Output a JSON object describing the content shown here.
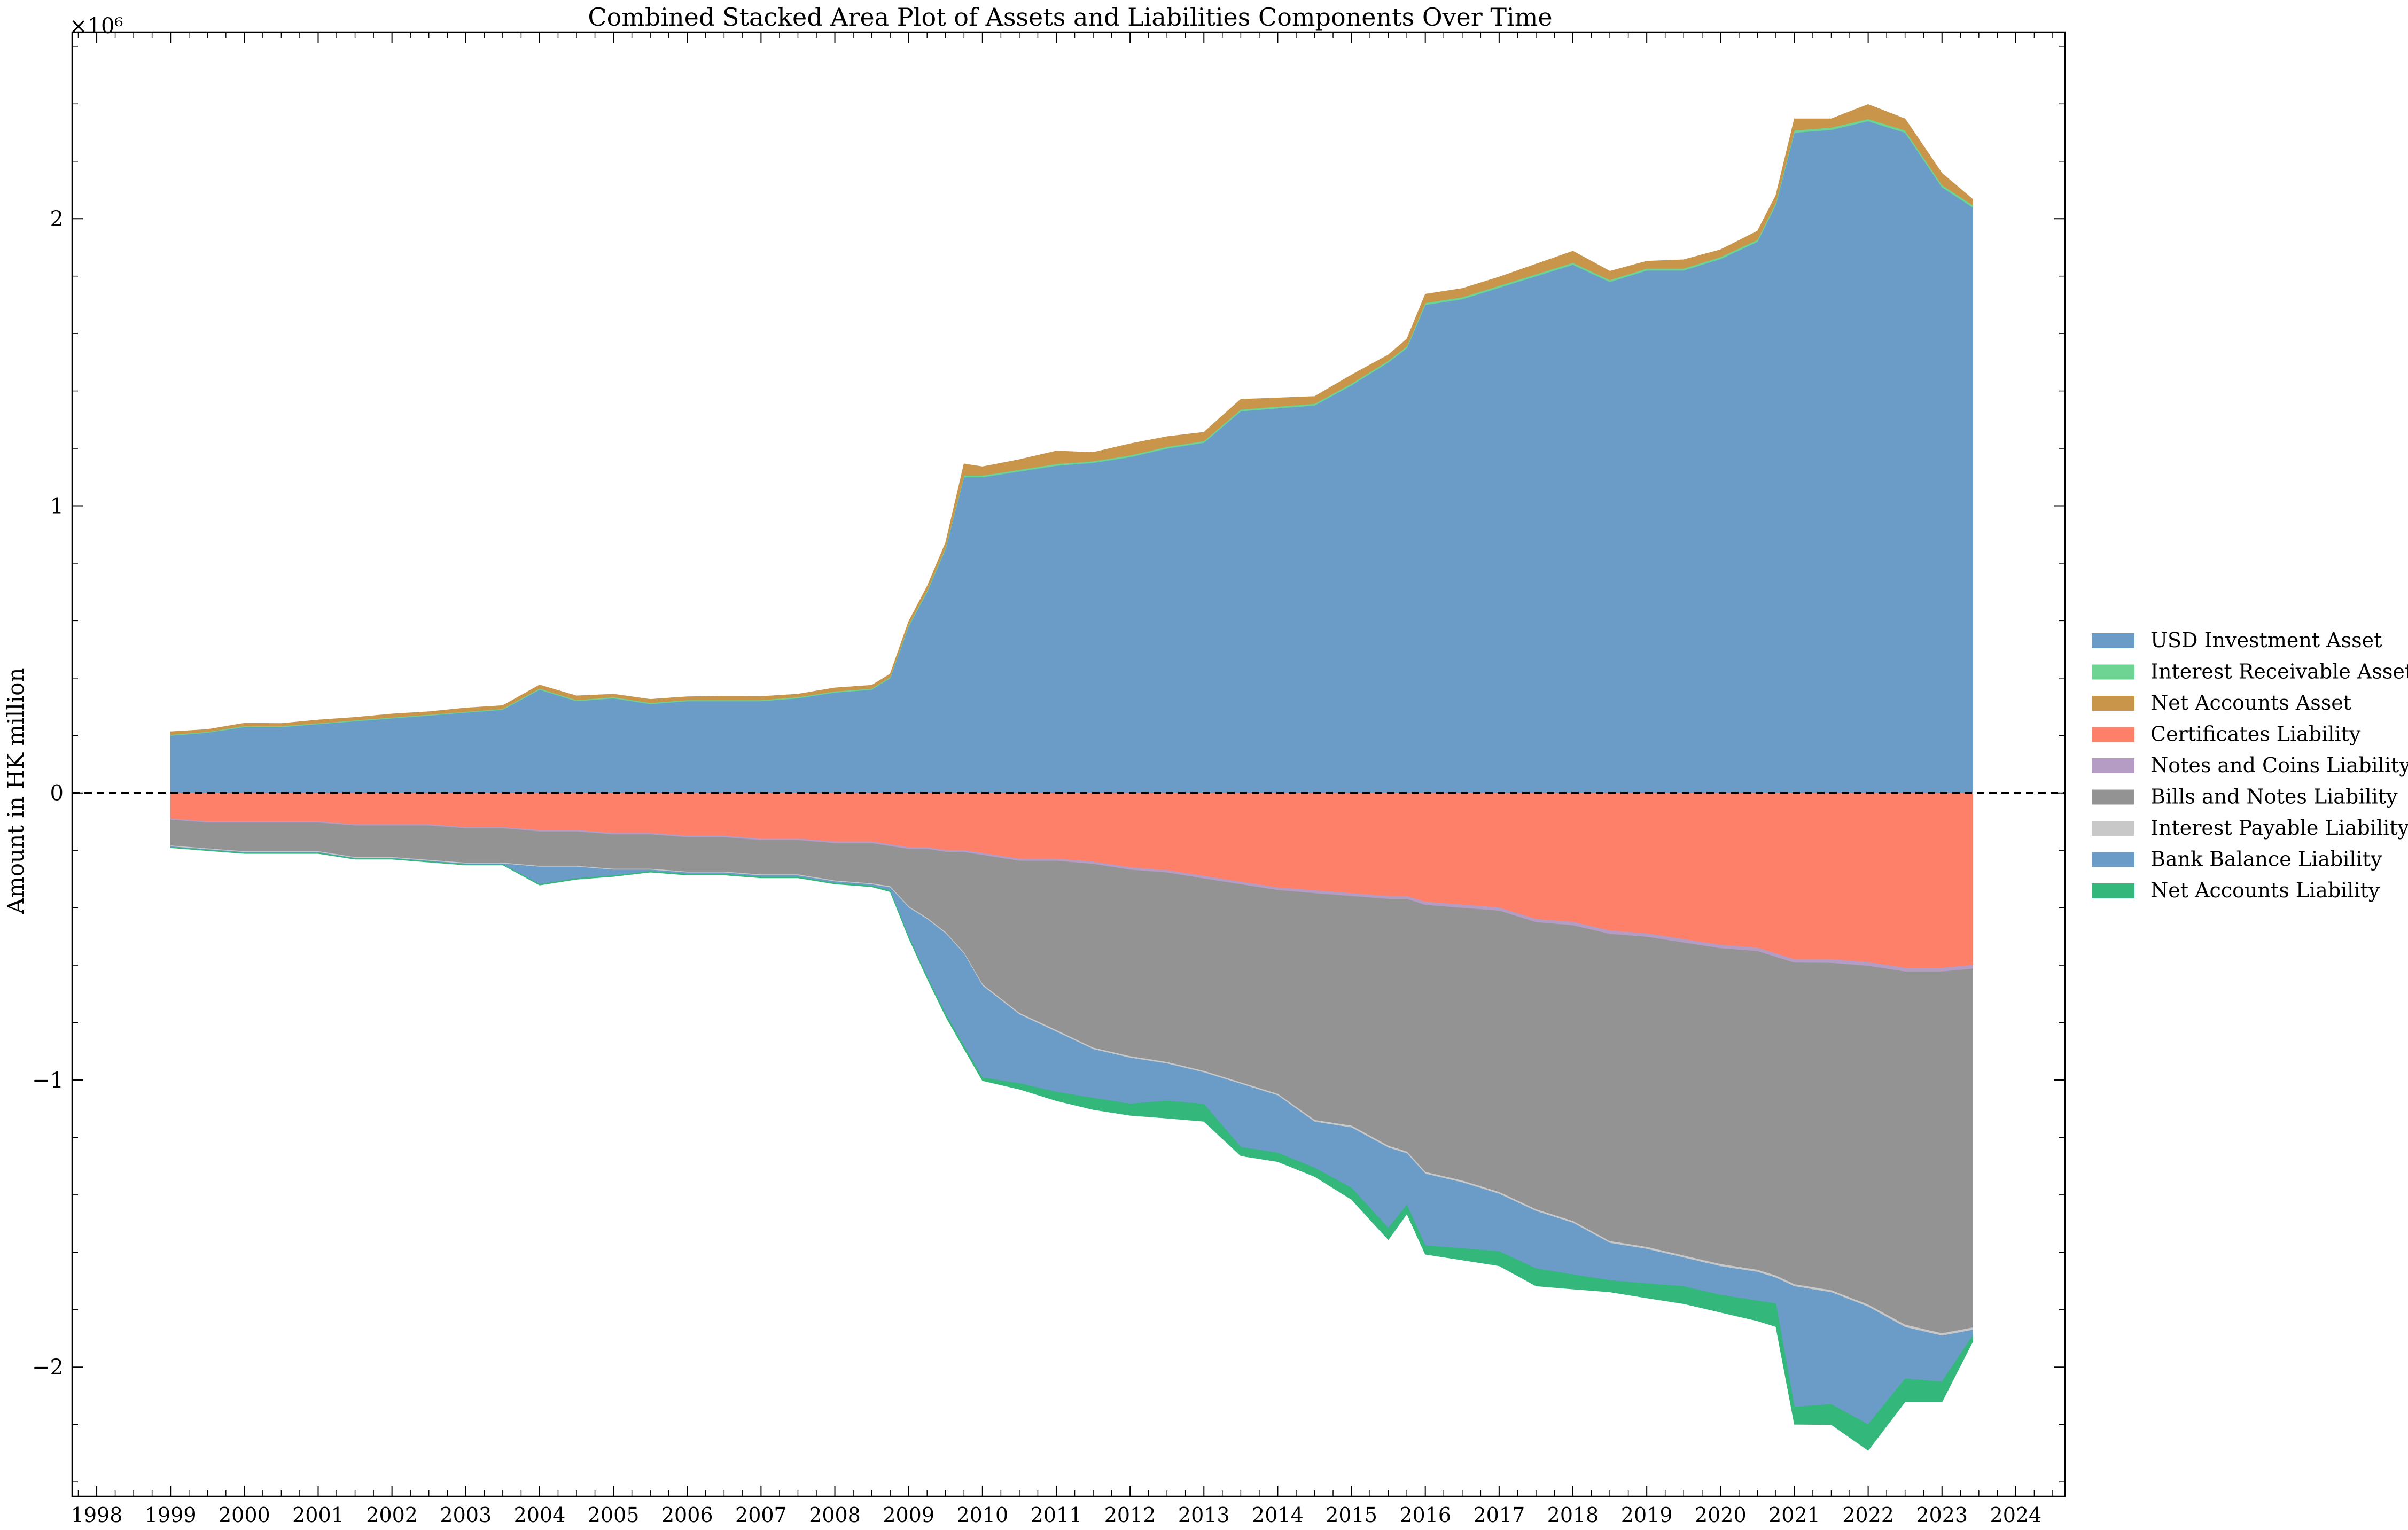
{
  "chart_data": {
    "type": "area",
    "stacked": true,
    "title": "Combined Stacked Area Plot of Assets and Liabilities Components Over Time",
    "xlabel": "",
    "ylabel": "Amount in HK million",
    "y_multiplier_label": "×10⁶",
    "xlim": [
      "1997-09-01",
      "2024-09-01"
    ],
    "ylim": [
      -2.45,
      2.65
    ],
    "y_unit": "HK$ million ×10^6",
    "x_ticks": [
      "1998",
      "1999",
      "2000",
      "2001",
      "2002",
      "2003",
      "2004",
      "2005",
      "2006",
      "2007",
      "2008",
      "2009",
      "2010",
      "2011",
      "2012",
      "2013",
      "2014",
      "2015",
      "2016",
      "2017",
      "2018",
      "2019",
      "2020",
      "2021",
      "2022",
      "2023",
      "2024"
    ],
    "y_ticks": [
      -2,
      -1,
      0,
      1,
      2
    ],
    "y_tick_labels": [
      "−2",
      "−1",
      "0",
      "1",
      "2"
    ],
    "zero_line": {
      "style": "dashed",
      "color": "#000000"
    },
    "grid": false,
    "legend": {
      "placement": "right, outside plot"
    },
    "dates": [
      "1999-01",
      "1999-07",
      "2000-01",
      "2000-07",
      "2001-01",
      "2001-07",
      "2002-01",
      "2002-07",
      "2003-01",
      "2003-07",
      "2004-01",
      "2004-07",
      "2005-01",
      "2005-07",
      "2006-01",
      "2006-07",
      "2007-01",
      "2007-07",
      "2008-01",
      "2008-07",
      "2008-10",
      "2009-01",
      "2009-04",
      "2009-07",
      "2009-10",
      "2010-01",
      "2010-07",
      "2011-01",
      "2011-07",
      "2012-01",
      "2012-07",
      "2013-01",
      "2013-07",
      "2014-01",
      "2014-07",
      "2015-01",
      "2015-07",
      "2015-10",
      "2016-01",
      "2016-07",
      "2017-01",
      "2017-07",
      "2018-01",
      "2018-07",
      "2019-01",
      "2019-07",
      "2020-01",
      "2020-07",
      "2020-10",
      "2021-01",
      "2021-07",
      "2022-01",
      "2022-07",
      "2023-01",
      "2023-06"
    ],
    "series": [
      {
        "name": "USD Investment Asset",
        "group": "asset",
        "color": "#6b9cc8",
        "values": [
          0.2,
          0.21,
          0.23,
          0.23,
          0.24,
          0.25,
          0.26,
          0.27,
          0.28,
          0.29,
          0.36,
          0.32,
          0.33,
          0.31,
          0.32,
          0.32,
          0.32,
          0.33,
          0.35,
          0.36,
          0.4,
          0.58,
          0.7,
          0.85,
          1.1,
          1.1,
          1.12,
          1.14,
          1.15,
          1.17,
          1.2,
          1.22,
          1.33,
          1.34,
          1.35,
          1.42,
          1.5,
          1.55,
          1.7,
          1.72,
          1.76,
          1.8,
          1.84,
          1.78,
          1.82,
          1.82,
          1.86,
          1.92,
          2.05,
          2.3,
          2.31,
          2.34,
          2.3,
          2.11,
          2.04
        ]
      },
      {
        "name": "Interest Receivable Asset",
        "group": "asset",
        "color": "#6dd493",
        "values": [
          0.003,
          0.003,
          0.003,
          0.003,
          0.003,
          0.003,
          0.003,
          0.003,
          0.003,
          0.003,
          0.004,
          0.004,
          0.004,
          0.004,
          0.004,
          0.004,
          0.004,
          0.004,
          0.004,
          0.004,
          0.004,
          0.005,
          0.005,
          0.005,
          0.006,
          0.006,
          0.006,
          0.006,
          0.006,
          0.006,
          0.006,
          0.006,
          0.006,
          0.006,
          0.006,
          0.006,
          0.006,
          0.006,
          0.007,
          0.007,
          0.007,
          0.007,
          0.007,
          0.007,
          0.007,
          0.007,
          0.007,
          0.007,
          0.007,
          0.008,
          0.008,
          0.008,
          0.008,
          0.008,
          0.008
        ]
      },
      {
        "name": "Net Accounts Asset",
        "group": "asset",
        "color": "#c8954a",
        "values": [
          0.01,
          0.008,
          0.01,
          0.009,
          0.011,
          0.01,
          0.012,
          0.01,
          0.013,
          0.011,
          0.012,
          0.014,
          0.01,
          0.012,
          0.011,
          0.013,
          0.012,
          0.01,
          0.012,
          0.011,
          0.01,
          0.012,
          0.014,
          0.016,
          0.04,
          0.03,
          0.035,
          0.045,
          0.03,
          0.04,
          0.035,
          0.03,
          0.035,
          0.03,
          0.025,
          0.03,
          0.02,
          0.025,
          0.03,
          0.03,
          0.03,
          0.035,
          0.04,
          0.03,
          0.025,
          0.03,
          0.025,
          0.03,
          0.025,
          0.04,
          0.03,
          0.05,
          0.04,
          0.04,
          0.02
        ]
      },
      {
        "name": "Certificates Liability",
        "group": "liability",
        "color": "#ff8068",
        "values": [
          0.09,
          0.1,
          0.1,
          0.1,
          0.1,
          0.11,
          0.11,
          0.11,
          0.12,
          0.12,
          0.13,
          0.13,
          0.14,
          0.14,
          0.15,
          0.15,
          0.16,
          0.16,
          0.17,
          0.17,
          0.18,
          0.19,
          0.19,
          0.2,
          0.2,
          0.21,
          0.23,
          0.23,
          0.24,
          0.26,
          0.27,
          0.29,
          0.31,
          0.33,
          0.34,
          0.35,
          0.36,
          0.36,
          0.38,
          0.39,
          0.4,
          0.44,
          0.45,
          0.48,
          0.49,
          0.51,
          0.53,
          0.54,
          0.56,
          0.58,
          0.58,
          0.59,
          0.61,
          0.61,
          0.6
        ]
      },
      {
        "name": "Notes and Coins Liability",
        "group": "liability",
        "color": "#b59cc4",
        "values": [
          0.004,
          0.004,
          0.004,
          0.004,
          0.004,
          0.004,
          0.004,
          0.004,
          0.004,
          0.004,
          0.005,
          0.005,
          0.005,
          0.005,
          0.005,
          0.005,
          0.005,
          0.005,
          0.006,
          0.006,
          0.006,
          0.006,
          0.006,
          0.006,
          0.007,
          0.007,
          0.007,
          0.007,
          0.008,
          0.008,
          0.008,
          0.009,
          0.009,
          0.009,
          0.01,
          0.01,
          0.01,
          0.01,
          0.011,
          0.011,
          0.011,
          0.011,
          0.012,
          0.012,
          0.012,
          0.012,
          0.012,
          0.012,
          0.012,
          0.012,
          0.013,
          0.013,
          0.013,
          0.013,
          0.013
        ]
      },
      {
        "name": "Bills and Notes Liability",
        "group": "liability",
        "color": "#939393",
        "values": [
          0.09,
          0.09,
          0.1,
          0.1,
          0.1,
          0.11,
          0.11,
          0.12,
          0.12,
          0.12,
          0.12,
          0.12,
          0.12,
          0.12,
          0.12,
          0.12,
          0.12,
          0.12,
          0.13,
          0.14,
          0.14,
          0.2,
          0.24,
          0.28,
          0.35,
          0.45,
          0.53,
          0.59,
          0.64,
          0.65,
          0.66,
          0.67,
          0.69,
          0.71,
          0.79,
          0.8,
          0.86,
          0.88,
          0.93,
          0.95,
          0.98,
          1.0,
          1.03,
          1.07,
          1.08,
          1.09,
          1.1,
          1.11,
          1.11,
          1.12,
          1.14,
          1.18,
          1.23,
          1.26,
          1.25
        ]
      },
      {
        "name": "Interest Payable Liability",
        "group": "liability",
        "color": "#c8c8c8",
        "values": [
          0.003,
          0.003,
          0.003,
          0.003,
          0.003,
          0.003,
          0.003,
          0.003,
          0.003,
          0.003,
          0.003,
          0.003,
          0.003,
          0.003,
          0.003,
          0.003,
          0.003,
          0.003,
          0.003,
          0.003,
          0.004,
          0.004,
          0.004,
          0.004,
          0.004,
          0.005,
          0.005,
          0.005,
          0.005,
          0.005,
          0.005,
          0.005,
          0.005,
          0.005,
          0.006,
          0.006,
          0.006,
          0.006,
          0.006,
          0.006,
          0.006,
          0.006,
          0.006,
          0.006,
          0.007,
          0.007,
          0.007,
          0.007,
          0.007,
          0.007,
          0.007,
          0.007,
          0.008,
          0.008,
          0.008
        ]
      },
      {
        "name": "Bank Balance Liability",
        "group": "liability",
        "color": "#6b9cc8",
        "values": [
          0.002,
          0.002,
          0.002,
          0.002,
          0.002,
          0.002,
          0.002,
          0.002,
          0.002,
          0.002,
          0.06,
          0.04,
          0.02,
          0.005,
          0.005,
          0.005,
          0.005,
          0.005,
          0.005,
          0.005,
          0.01,
          0.1,
          0.2,
          0.28,
          0.32,
          0.32,
          0.24,
          0.21,
          0.17,
          0.16,
          0.13,
          0.11,
          0.22,
          0.2,
          0.16,
          0.21,
          0.28,
          0.18,
          0.25,
          0.23,
          0.2,
          0.2,
          0.18,
          0.13,
          0.12,
          0.1,
          0.1,
          0.1,
          0.09,
          0.42,
          0.39,
          0.41,
          0.18,
          0.16,
          0.02
        ]
      },
      {
        "name": "Net Accounts Liability",
        "group": "liability",
        "color": "#34b77a",
        "values": [
          0.002,
          0.002,
          0.002,
          0.002,
          0.002,
          0.002,
          0.002,
          0.002,
          0.002,
          0.002,
          0.003,
          0.003,
          0.003,
          0.003,
          0.003,
          0.003,
          0.003,
          0.003,
          0.003,
          0.003,
          0.004,
          0.005,
          0.006,
          0.008,
          0.01,
          0.01,
          0.02,
          0.03,
          0.04,
          0.04,
          0.06,
          0.06,
          0.03,
          0.03,
          0.03,
          0.04,
          0.04,
          0.03,
          0.03,
          0.04,
          0.05,
          0.06,
          0.05,
          0.04,
          0.05,
          0.06,
          0.06,
          0.07,
          0.08,
          0.06,
          0.07,
          0.09,
          0.08,
          0.07,
          0.02
        ]
      }
    ]
  }
}
